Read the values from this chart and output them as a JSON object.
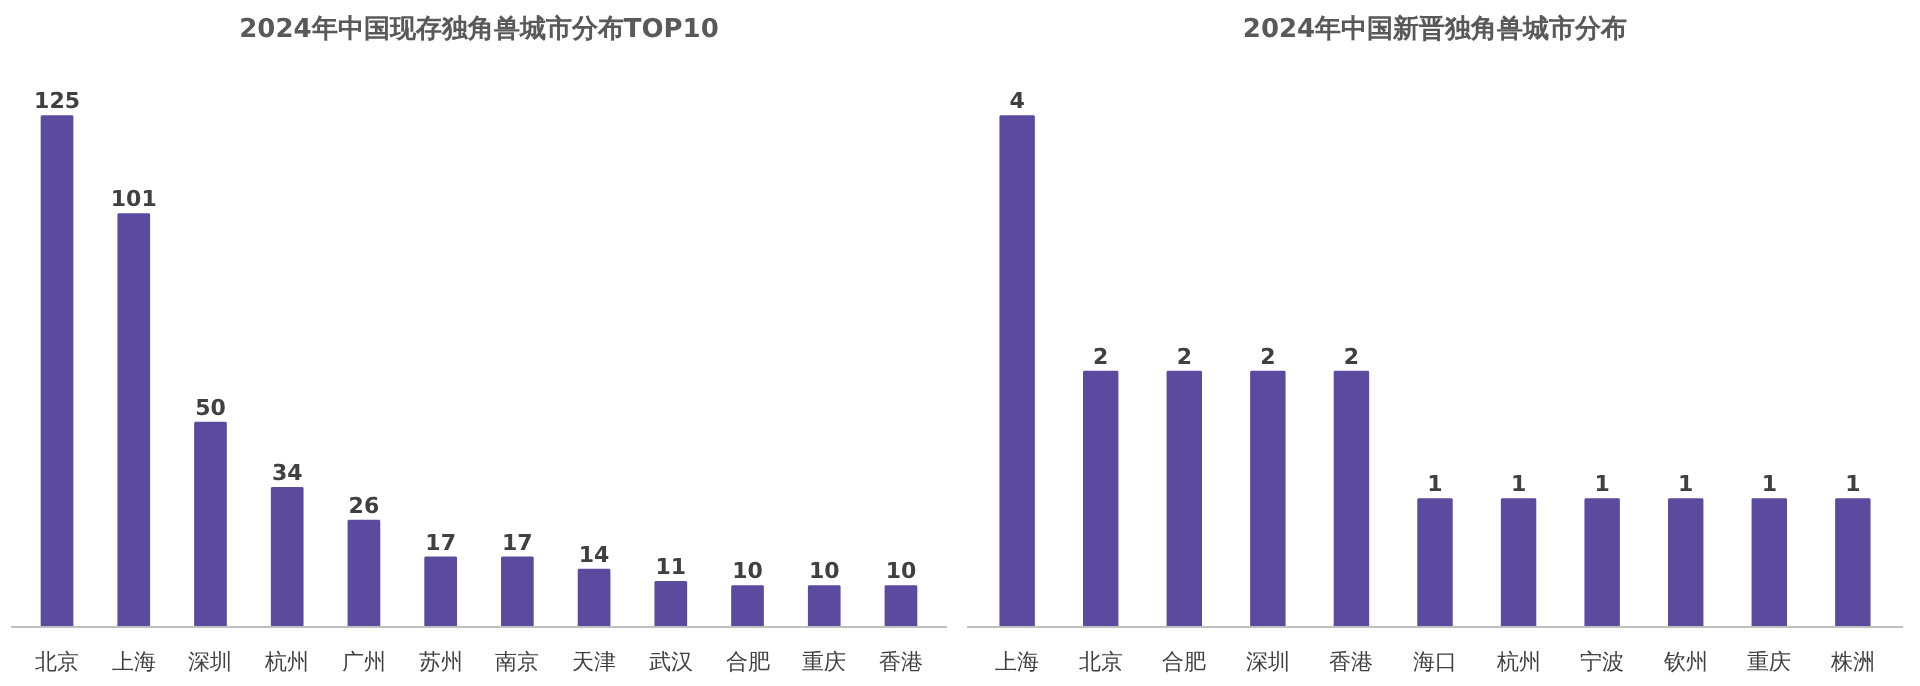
{
  "chart_data": [
    {
      "type": "bar",
      "title": "2024年中国现存独角兽城市分布TOP10",
      "categories": [
        "北京",
        "上海",
        "深圳",
        "杭州",
        "广州",
        "苏州",
        "南京",
        "天津",
        "武汉",
        "合肥",
        "重庆",
        "香港"
      ],
      "values": [
        125,
        101,
        50,
        34,
        26,
        17,
        17,
        14,
        11,
        10,
        10,
        10
      ],
      "color": "#5b4a9e",
      "data_labels": true,
      "tick_labels": "x",
      "grid": false
    },
    {
      "type": "bar",
      "title": "2024年中国新晋独角兽城市分布",
      "categories": [
        "上海",
        "北京",
        "合肥",
        "深圳",
        "香港",
        "海口",
        "杭州",
        "宁波",
        "钦州",
        "重庆",
        "株洲"
      ],
      "values": [
        4,
        2,
        2,
        2,
        2,
        1,
        1,
        1,
        1,
        1,
        1
      ],
      "color": "#5b4a9e",
      "data_labels": true,
      "tick_labels": "x",
      "grid": false
    }
  ]
}
